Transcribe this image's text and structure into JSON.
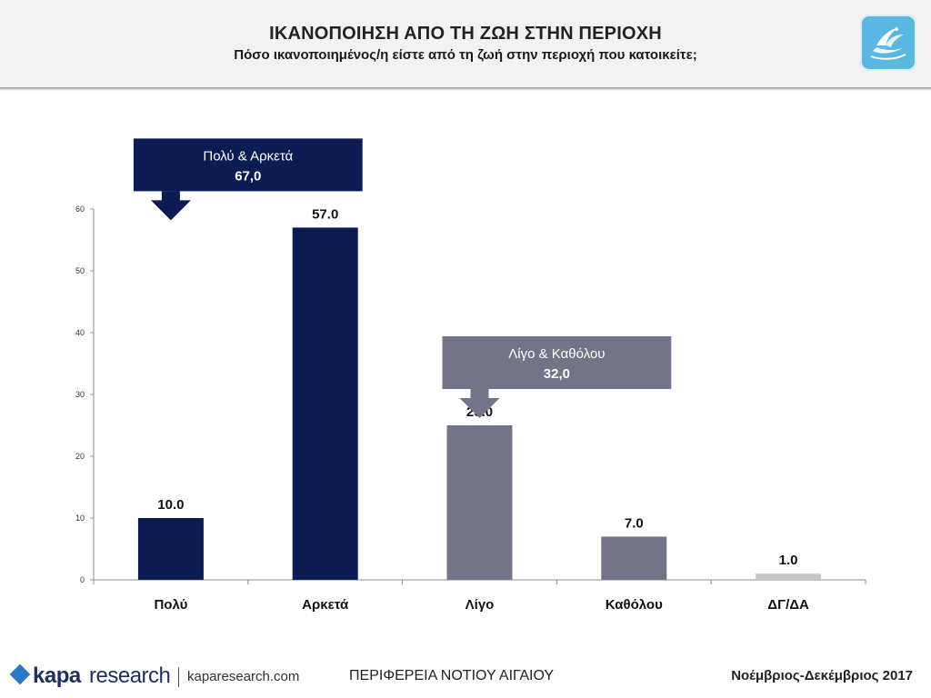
{
  "header": {
    "title": "ΙΚΑΝΟΠΟΙΗΣΗ ΑΠΟ ΤΗ ΖΩΗ ΣΤΗΝ ΠΕΡΙΟΧΗ",
    "subtitle": "Πόσο ικανοποιημένος/η είστε από τη ζωή στην περιοχή που κατοικείτε;",
    "logo_icon": "bird-logo-icon"
  },
  "chart_data": {
    "type": "bar",
    "categories": [
      "Πολύ",
      "Αρκετά",
      "Λίγο",
      "Καθόλου",
      "ΔΓ/ΔΑ"
    ],
    "values": [
      10.0,
      57.0,
      25.0,
      7.0,
      1.0
    ],
    "value_labels": [
      "10.0",
      "57.0",
      "25.0",
      "7.0",
      "1.0"
    ],
    "bar_colors": [
      "#0c1c52",
      "#0c1c52",
      "#747488",
      "#747488",
      "#c6c6c6"
    ],
    "ylim": [
      0,
      60
    ],
    "yticks": [
      0,
      10,
      20,
      30,
      40,
      50,
      60
    ],
    "ytick_labels": [
      "0",
      "10",
      "20",
      "30",
      "40",
      "50",
      "60"
    ],
    "grid": false,
    "annotations": [
      {
        "label": "Πολύ & Αρκετά",
        "value": "67,0",
        "color": "#0c1c52",
        "spans": [
          "Πολύ",
          "Αρκετά"
        ]
      },
      {
        "label": "Λίγο & Καθόλου",
        "value": "32,0",
        "color": "#747488",
        "spans": [
          "Λίγο",
          "Καθόλου"
        ]
      }
    ]
  },
  "footer": {
    "brand_kapa": "kapa",
    "brand_research": "research",
    "brand_url": "kaparesearch.com",
    "region": "ΠΕΡΙΦΕΡΕΙΑ ΝΟΤΙΟΥ ΑΙΓΑΙΟΥ",
    "period": "Νοέμβριος-Δεκέμβριος 2017"
  }
}
